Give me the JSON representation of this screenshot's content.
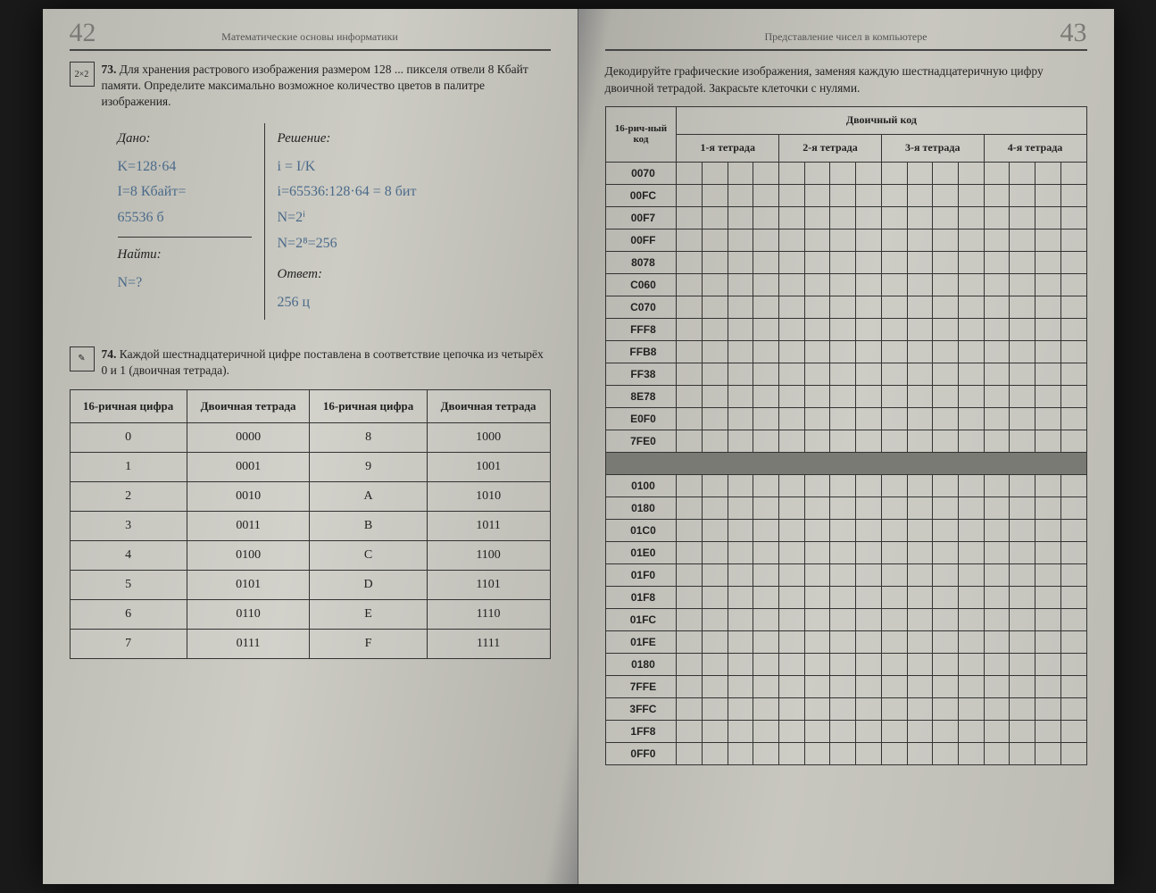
{
  "left": {
    "page_num": "42",
    "running": "Математические основы информатики",
    "task73": {
      "icon": "2×2",
      "num": "73.",
      "text": "Для хранения растрового изображения размером 128 ... пикселя отвели 8 Кбайт памяти. Определите максимально возможное количество цветов в палитре изображения.",
      "given_label": "Дано:",
      "given_lines": [
        "K=128·64",
        "I=8 Кбайт=",
        "65536 б"
      ],
      "find_label": "Найти:",
      "find_lines": [
        "N=?"
      ],
      "solution_label": "Решение:",
      "solution_lines": [
        "i = I/K",
        "i=65536:128·64 = 8 бит",
        "N=2ⁱ",
        "N=2⁸=256"
      ],
      "answer_label": "Ответ:",
      "answer_lines": [
        "256 ц"
      ]
    },
    "task74": {
      "icon": "✎",
      "num": "74.",
      "text": "Каждой шестнадцатеричной цифре поставлена в соответствие цепочка из четырёх 0 и 1 (двоичная тетрада).",
      "table_headers": [
        "16-ричная цифра",
        "Двоичная тетрада",
        "16-ричная цифра",
        "Двоичная тетрада"
      ],
      "table_rows": [
        [
          "0",
          "0000",
          "8",
          "1000"
        ],
        [
          "1",
          "0001",
          "9",
          "1001"
        ],
        [
          "2",
          "0010",
          "A",
          "1010"
        ],
        [
          "3",
          "0011",
          "B",
          "1011"
        ],
        [
          "4",
          "0100",
          "C",
          "1100"
        ],
        [
          "5",
          "0101",
          "D",
          "1101"
        ],
        [
          "6",
          "0110",
          "E",
          "1110"
        ],
        [
          "7",
          "0111",
          "F",
          "1111"
        ]
      ]
    }
  },
  "right": {
    "page_num": "43",
    "running": "Представление чисел в компьютере",
    "intro": "Декодируйте графические изображения, заменяя каждую шестнадцатеричную цифру двоичной тетрадой. Закрасьте клеточки с нулями.",
    "th_hex": "16-рич-ный код",
    "th_bin": "Двоичный код",
    "tetrad_headers": [
      "1-я тетрада",
      "2-я тетрада",
      "3-я тетрада",
      "4-я тетрада"
    ],
    "codes_top": [
      "0070",
      "00FC",
      "00F7",
      "00FF",
      "8078",
      "C060",
      "C070",
      "FFF8",
      "FFB8",
      "FF38",
      "8E78",
      "E0F0",
      "7FE0"
    ],
    "codes_bottom": [
      "0100",
      "0180",
      "01C0",
      "01E0",
      "01F0",
      "01F8",
      "01FC",
      "01FE",
      "0180",
      "7FFE",
      "3FFC",
      "1FF8",
      "0FF0"
    ]
  }
}
